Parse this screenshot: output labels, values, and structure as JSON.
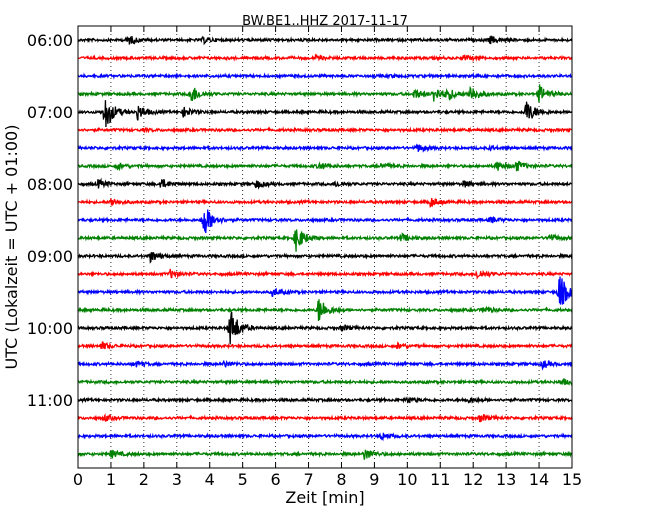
{
  "chart_data": {
    "type": "line",
    "title": "BW.BE1..HHZ 2017-11-17",
    "xlabel": "Zeit  [min]",
    "ylabel": "UTC (Lokalzeit = UTC + 01:00)",
    "xlim": [
      0,
      15
    ],
    "x_ticks": [
      "0",
      "1",
      "2",
      "3",
      "4",
      "5",
      "6",
      "7",
      "8",
      "9",
      "10",
      "11",
      "12",
      "13",
      "14",
      "15"
    ],
    "y_ticks": [
      "06:00",
      "07:00",
      "08:00",
      "09:00",
      "10:00",
      "11:00"
    ],
    "grid": "vertical-dotted",
    "series_colors": [
      "#000000",
      "#ff0000",
      "#0000ff",
      "#008000"
    ],
    "traces": [
      {
        "start": "06:00",
        "color": "#000000",
        "events": [
          [
            1.5,
            0.5
          ],
          [
            3.8,
            0.3
          ],
          [
            12.5,
            0.4
          ]
        ]
      },
      {
        "start": "06:15",
        "color": "#ff0000",
        "events": [
          [
            7.2,
            0.2
          ],
          [
            11.7,
            0.25
          ]
        ]
      },
      {
        "start": "06:30",
        "color": "#0000ff",
        "events": [
          [
            9.5,
            0.1
          ],
          [
            12.0,
            0.1
          ]
        ]
      },
      {
        "start": "06:45",
        "color": "#008000",
        "events": [
          [
            3.4,
            1.1
          ],
          [
            10.2,
            0.5
          ],
          [
            10.8,
            0.8
          ],
          [
            11.2,
            0.6
          ],
          [
            11.9,
            0.9
          ],
          [
            14.0,
            0.9
          ]
        ]
      },
      {
        "start": "07:00",
        "color": "#000000",
        "events": [
          [
            0.8,
            2.0
          ],
          [
            1.8,
            0.8
          ],
          [
            3.2,
            0.5
          ],
          [
            13.6,
            1.3
          ]
        ]
      },
      {
        "start": "07:15",
        "color": "#ff0000",
        "events": [
          [
            2.0,
            0.1
          ]
        ]
      },
      {
        "start": "07:30",
        "color": "#0000ff",
        "events": [
          [
            10.3,
            0.4
          ],
          [
            12.5,
            0.2
          ]
        ]
      },
      {
        "start": "07:45",
        "color": "#008000",
        "events": [
          [
            1.2,
            0.3
          ],
          [
            7.3,
            0.4
          ],
          [
            9.2,
            0.3
          ],
          [
            12.7,
            0.5
          ],
          [
            13.3,
            0.5
          ]
        ]
      },
      {
        "start": "08:00",
        "color": "#000000",
        "events": [
          [
            0.6,
            0.4
          ],
          [
            2.5,
            0.5
          ],
          [
            5.4,
            0.4
          ],
          [
            7.8,
            0.3
          ],
          [
            11.7,
            0.3
          ]
        ]
      },
      {
        "start": "08:15",
        "color": "#ff0000",
        "events": [
          [
            1.0,
            0.4
          ],
          [
            10.7,
            0.5
          ]
        ]
      },
      {
        "start": "08:30",
        "color": "#0000ff",
        "events": [
          [
            3.8,
            1.9
          ],
          [
            12.5,
            0.3
          ]
        ]
      },
      {
        "start": "08:45",
        "color": "#008000",
        "events": [
          [
            6.6,
            1.4
          ],
          [
            9.8,
            0.4
          ],
          [
            14.3,
            0.4
          ]
        ]
      },
      {
        "start": "09:00",
        "color": "#000000",
        "events": [
          [
            2.2,
            0.6
          ]
        ]
      },
      {
        "start": "09:15",
        "color": "#ff0000",
        "events": [
          [
            2.8,
            0.4
          ],
          [
            12.1,
            0.5
          ]
        ]
      },
      {
        "start": "09:30",
        "color": "#0000ff",
        "events": [
          [
            5.9,
            0.4
          ],
          [
            14.6,
            2.0
          ]
        ]
      },
      {
        "start": "09:45",
        "color": "#008000",
        "events": [
          [
            7.3,
            1.4
          ],
          [
            12.3,
            0.3
          ]
        ]
      },
      {
        "start": "10:00",
        "color": "#000000",
        "events": [
          [
            4.6,
            2.2
          ],
          [
            8.0,
            0.3
          ]
        ]
      },
      {
        "start": "10:15",
        "color": "#ff0000",
        "events": [
          [
            0.7,
            0.4
          ],
          [
            9.7,
            0.3
          ]
        ]
      },
      {
        "start": "10:30",
        "color": "#0000ff",
        "events": [
          [
            1.7,
            0.3
          ],
          [
            4.4,
            0.3
          ],
          [
            14.1,
            0.4
          ]
        ]
      },
      {
        "start": "10:45",
        "color": "#008000",
        "events": [
          [
            14.7,
            0.3
          ]
        ]
      },
      {
        "start": "11:00",
        "color": "#000000",
        "events": [
          [
            10.0,
            0.3
          ],
          [
            11.8,
            0.3
          ]
        ]
      },
      {
        "start": "11:15",
        "color": "#ff0000",
        "events": [
          [
            0.8,
            0.3
          ],
          [
            12.2,
            0.4
          ]
        ]
      },
      {
        "start": "11:30",
        "color": "#0000ff",
        "events": [
          [
            9.2,
            0.4
          ]
        ]
      },
      {
        "start": "11:45",
        "color": "#008000",
        "events": [
          [
            1.0,
            0.4
          ],
          [
            8.7,
            0.6
          ]
        ]
      }
    ]
  }
}
